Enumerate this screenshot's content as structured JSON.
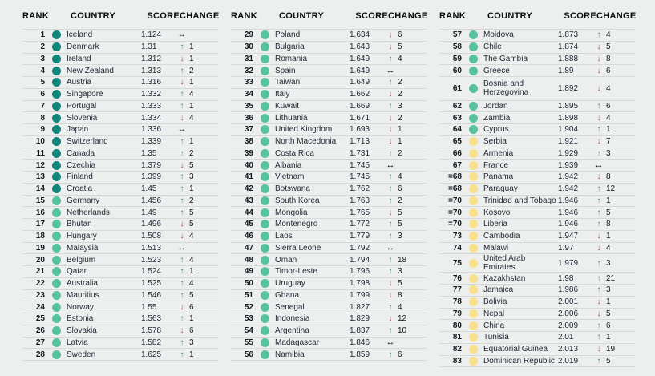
{
  "columns": [
    "RANK",
    "COUNTRY",
    "SCORE",
    "CHANGE"
  ],
  "icons": {
    "up": "↑",
    "down": "↓",
    "same": "↔"
  },
  "colors": {
    "background": "#edefee",
    "row_line": "#d6d9d7",
    "text": "#262736",
    "rank_text": "#16171f",
    "header_text": "#0b0c10",
    "dot_dark": "#10857a",
    "dot_green": "#56c29f",
    "dot_yellow": "#f9e18b",
    "arrow_up": "#2b9184",
    "arrow_down": "#c4423b",
    "arrow_same": "#101010"
  },
  "tables": [
    {
      "rows": [
        {
          "rank": "1",
          "country": "Iceland",
          "score": "1.124",
          "dir": "same",
          "delta": "",
          "tier": "dark"
        },
        {
          "rank": "2",
          "country": "Denmark",
          "score": "1.31",
          "dir": "up",
          "delta": "1",
          "tier": "dark"
        },
        {
          "rank": "3",
          "country": "Ireland",
          "score": "1.312",
          "dir": "down",
          "delta": "1",
          "tier": "dark"
        },
        {
          "rank": "4",
          "country": "New Zealand",
          "score": "1.313",
          "dir": "up",
          "delta": "2",
          "tier": "dark"
        },
        {
          "rank": "5",
          "country": "Austria",
          "score": "1.316",
          "dir": "down",
          "delta": "1",
          "tier": "dark"
        },
        {
          "rank": "6",
          "country": "Singapore",
          "score": "1.332",
          "dir": "up",
          "delta": "4",
          "tier": "dark"
        },
        {
          "rank": "7",
          "country": "Portugal",
          "score": "1.333",
          "dir": "up",
          "delta": "1",
          "tier": "dark"
        },
        {
          "rank": "8",
          "country": "Slovenia",
          "score": "1.334",
          "dir": "down",
          "delta": "4",
          "tier": "dark"
        },
        {
          "rank": "9",
          "country": "Japan",
          "score": "1.336",
          "dir": "same",
          "delta": "",
          "tier": "dark"
        },
        {
          "rank": "10",
          "country": "Switzerland",
          "score": "1.339",
          "dir": "up",
          "delta": "1",
          "tier": "dark"
        },
        {
          "rank": "11",
          "country": "Canada",
          "score": "1.35",
          "dir": "up",
          "delta": "2",
          "tier": "dark"
        },
        {
          "rank": "12",
          "country": "Czechia",
          "score": "1.379",
          "dir": "down",
          "delta": "5",
          "tier": "dark"
        },
        {
          "rank": "13",
          "country": "Finland",
          "score": "1.399",
          "dir": "up",
          "delta": "3",
          "tier": "dark"
        },
        {
          "rank": "14",
          "country": "Croatia",
          "score": "1.45",
          "dir": "up",
          "delta": "1",
          "tier": "dark"
        },
        {
          "rank": "15",
          "country": "Germany",
          "score": "1.456",
          "dir": "up",
          "delta": "2",
          "tier": "green"
        },
        {
          "rank": "16",
          "country": "Netherlands",
          "score": "1.49",
          "dir": "up",
          "delta": "5",
          "tier": "green"
        },
        {
          "rank": "17",
          "country": "Bhutan",
          "score": "1.496",
          "dir": "down",
          "delta": "5",
          "tier": "green"
        },
        {
          "rank": "18",
          "country": "Hungary",
          "score": "1.508",
          "dir": "down",
          "delta": "4",
          "tier": "green"
        },
        {
          "rank": "19",
          "country": "Malaysia",
          "score": "1.513",
          "dir": "same",
          "delta": "",
          "tier": "green"
        },
        {
          "rank": "20",
          "country": "Belgium",
          "score": "1.523",
          "dir": "up",
          "delta": "4",
          "tier": "green"
        },
        {
          "rank": "21",
          "country": "Qatar",
          "score": "1.524",
          "dir": "up",
          "delta": "1",
          "tier": "green"
        },
        {
          "rank": "22",
          "country": "Australia",
          "score": "1.525",
          "dir": "up",
          "delta": "4",
          "tier": "green"
        },
        {
          "rank": "23",
          "country": "Mauritius",
          "score": "1.546",
          "dir": "up",
          "delta": "5",
          "tier": "green"
        },
        {
          "rank": "24",
          "country": "Norway",
          "score": "1.55",
          "dir": "down",
          "delta": "6",
          "tier": "green"
        },
        {
          "rank": "25",
          "country": "Estonia",
          "score": "1.563",
          "dir": "up",
          "delta": "1",
          "tier": "green"
        },
        {
          "rank": "26",
          "country": "Slovakia",
          "score": "1.578",
          "dir": "down",
          "delta": "6",
          "tier": "green"
        },
        {
          "rank": "27",
          "country": "Latvia",
          "score": "1.582",
          "dir": "up",
          "delta": "3",
          "tier": "green"
        },
        {
          "rank": "28",
          "country": "Sweden",
          "score": "1.625",
          "dir": "up",
          "delta": "1",
          "tier": "green"
        }
      ]
    },
    {
      "rows": [
        {
          "rank": "29",
          "country": "Poland",
          "score": "1.634",
          "dir": "down",
          "delta": "6",
          "tier": "green"
        },
        {
          "rank": "30",
          "country": "Bulgaria",
          "score": "1.643",
          "dir": "down",
          "delta": "5",
          "tier": "green"
        },
        {
          "rank": "31",
          "country": "Romania",
          "score": "1.649",
          "dir": "up",
          "delta": "4",
          "tier": "green"
        },
        {
          "rank": "32",
          "country": "Spain",
          "score": "1.649",
          "dir": "same",
          "delta": "",
          "tier": "green"
        },
        {
          "rank": "33",
          "country": "Taiwan",
          "score": "1.649",
          "dir": "up",
          "delta": "2",
          "tier": "green"
        },
        {
          "rank": "34",
          "country": "Italy",
          "score": "1.662",
          "dir": "down",
          "delta": "2",
          "tier": "green"
        },
        {
          "rank": "35",
          "country": "Kuwait",
          "score": "1.669",
          "dir": "up",
          "delta": "3",
          "tier": "green"
        },
        {
          "rank": "36",
          "country": "Lithuania",
          "score": "1.671",
          "dir": "down",
          "delta": "2",
          "tier": "green"
        },
        {
          "rank": "37",
          "country": "United Kingdom",
          "score": "1.693",
          "dir": "down",
          "delta": "1",
          "tier": "green"
        },
        {
          "rank": "38",
          "country": "North Macedonia",
          "score": "1.713",
          "dir": "down",
          "delta": "1",
          "tier": "green"
        },
        {
          "rank": "39",
          "country": "Costa Rica",
          "score": "1.731",
          "dir": "up",
          "delta": "2",
          "tier": "green"
        },
        {
          "rank": "40",
          "country": "Albania",
          "score": "1.745",
          "dir": "same",
          "delta": "",
          "tier": "green"
        },
        {
          "rank": "41",
          "country": "Vietnam",
          "score": "1.745",
          "dir": "up",
          "delta": "4",
          "tier": "green"
        },
        {
          "rank": "42",
          "country": "Botswana",
          "score": "1.762",
          "dir": "up",
          "delta": "6",
          "tier": "green"
        },
        {
          "rank": "43",
          "country": "South Korea",
          "score": "1.763",
          "dir": "up",
          "delta": "2",
          "tier": "green"
        },
        {
          "rank": "44",
          "country": "Mongolia",
          "score": "1.765",
          "dir": "down",
          "delta": "5",
          "tier": "green"
        },
        {
          "rank": "45",
          "country": "Montenegro",
          "score": "1.772",
          "dir": "up",
          "delta": "5",
          "tier": "green"
        },
        {
          "rank": "46",
          "country": "Laos",
          "score": "1.779",
          "dir": "up",
          "delta": "3",
          "tier": "green"
        },
        {
          "rank": "47",
          "country": "Sierra Leone",
          "score": "1.792",
          "dir": "same",
          "delta": "",
          "tier": "green"
        },
        {
          "rank": "48",
          "country": "Oman",
          "score": "1.794",
          "dir": "up",
          "delta": "18",
          "tier": "green"
        },
        {
          "rank": "49",
          "country": "Timor-Leste",
          "score": "1.796",
          "dir": "up",
          "delta": "3",
          "tier": "green"
        },
        {
          "rank": "50",
          "country": "Uruguay",
          "score": "1.798",
          "dir": "down",
          "delta": "5",
          "tier": "green"
        },
        {
          "rank": "51",
          "country": "Ghana",
          "score": "1.799",
          "dir": "down",
          "delta": "8",
          "tier": "green"
        },
        {
          "rank": "52",
          "country": "Senegal",
          "score": "1.827",
          "dir": "up",
          "delta": "4",
          "tier": "green"
        },
        {
          "rank": "53",
          "country": "Indonesia",
          "score": "1.829",
          "dir": "down",
          "delta": "12",
          "tier": "green"
        },
        {
          "rank": "54",
          "country": "Argentina",
          "score": "1.837",
          "dir": "up",
          "delta": "10",
          "tier": "green"
        },
        {
          "rank": "55",
          "country": "Madagascar",
          "score": "1.846",
          "dir": "same",
          "delta": "",
          "tier": "green"
        },
        {
          "rank": "56",
          "country": "Namibia",
          "score": "1.859",
          "dir": "up",
          "delta": "6",
          "tier": "green"
        }
      ]
    },
    {
      "rows": [
        {
          "rank": "57",
          "country": "Moldova",
          "score": "1.873",
          "dir": "up",
          "delta": "4",
          "tier": "green"
        },
        {
          "rank": "58",
          "country": "Chile",
          "score": "1.874",
          "dir": "down",
          "delta": "5",
          "tier": "green"
        },
        {
          "rank": "59",
          "country": "The Gambia",
          "score": "1.888",
          "dir": "down",
          "delta": "8",
          "tier": "green"
        },
        {
          "rank": "60",
          "country": "Greece",
          "score": "1.89",
          "dir": "down",
          "delta": "6",
          "tier": "green"
        },
        {
          "rank": "61",
          "country": "Bosnia and Herzegovina",
          "score": "1.892",
          "dir": "down",
          "delta": "4",
          "tier": "green",
          "wrap": true
        },
        {
          "rank": "62",
          "country": "Jordan",
          "score": "1.895",
          "dir": "up",
          "delta": "6",
          "tier": "green"
        },
        {
          "rank": "63",
          "country": "Zambia",
          "score": "1.898",
          "dir": "down",
          "delta": "4",
          "tier": "green"
        },
        {
          "rank": "64",
          "country": "Cyprus",
          "score": "1.904",
          "dir": "up",
          "delta": "1",
          "tier": "green"
        },
        {
          "rank": "65",
          "country": "Serbia",
          "score": "1.921",
          "dir": "down",
          "delta": "7",
          "tier": "yellow"
        },
        {
          "rank": "66",
          "country": "Armenia",
          "score": "1.929",
          "dir": "up",
          "delta": "3",
          "tier": "yellow"
        },
        {
          "rank": "67",
          "country": "France",
          "score": "1.939",
          "dir": "same",
          "delta": "",
          "tier": "yellow"
        },
        {
          "rank": "=68",
          "country": "Panama",
          "score": "1.942",
          "dir": "down",
          "delta": "8",
          "tier": "yellow"
        },
        {
          "rank": "=68",
          "country": "Paraguay",
          "score": "1.942",
          "dir": "up",
          "delta": "12",
          "tier": "yellow"
        },
        {
          "rank": "=70",
          "country": "Trinidad and Tobago",
          "score": "1.946",
          "dir": "up",
          "delta": "1",
          "tier": "yellow"
        },
        {
          "rank": "=70",
          "country": "Kosovo",
          "score": "1.946",
          "dir": "up",
          "delta": "5",
          "tier": "yellow"
        },
        {
          "rank": "=70",
          "country": "Liberia",
          "score": "1.946",
          "dir": "up",
          "delta": "8",
          "tier": "yellow"
        },
        {
          "rank": "73",
          "country": "Cambodia",
          "score": "1.947",
          "dir": "down",
          "delta": "1",
          "tier": "yellow"
        },
        {
          "rank": "74",
          "country": "Malawi",
          "score": "1.97",
          "dir": "down",
          "delta": "4",
          "tier": "yellow"
        },
        {
          "rank": "75",
          "country": "United Arab Emirates",
          "score": "1.979",
          "dir": "up",
          "delta": "3",
          "tier": "yellow"
        },
        {
          "rank": "76",
          "country": "Kazakhstan",
          "score": "1.98",
          "dir": "up",
          "delta": "21",
          "tier": "yellow"
        },
        {
          "rank": "77",
          "country": "Jamaica",
          "score": "1.986",
          "dir": "up",
          "delta": "3",
          "tier": "yellow"
        },
        {
          "rank": "78",
          "country": "Bolivia",
          "score": "2.001",
          "dir": "down",
          "delta": "1",
          "tier": "yellow"
        },
        {
          "rank": "79",
          "country": "Nepal",
          "score": "2.006",
          "dir": "down",
          "delta": "5",
          "tier": "yellow"
        },
        {
          "rank": "80",
          "country": "China",
          "score": "2.009",
          "dir": "up",
          "delta": "6",
          "tier": "yellow"
        },
        {
          "rank": "81",
          "country": "Tunisia",
          "score": "2.01",
          "dir": "up",
          "delta": "1",
          "tier": "yellow"
        },
        {
          "rank": "82",
          "country": "Equatorial Guinea",
          "score": "2.013",
          "dir": "down",
          "delta": "19",
          "tier": "yellow"
        },
        {
          "rank": "83",
          "country": "Dominican Republic",
          "score": "2.019",
          "dir": "up",
          "delta": "5",
          "tier": "yellow"
        }
      ]
    }
  ]
}
